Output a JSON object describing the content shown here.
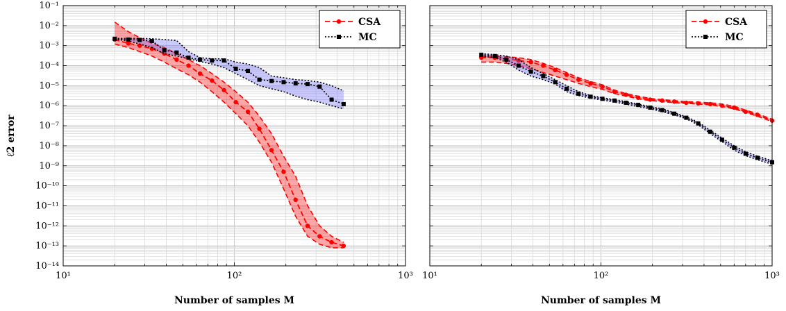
{
  "chart_data": [
    {
      "type": "line",
      "xscale": "log",
      "yscale": "log",
      "xlim": [
        10,
        1000
      ],
      "ylim": [
        1e-14,
        0.1
      ],
      "xlabel": "Number of samples M",
      "ylabel": "ℓ2 error",
      "grid": true,
      "legend_position": "top-right",
      "x_ticks": [
        {
          "value": 10,
          "label": "10¹"
        },
        {
          "value": 100,
          "label": "10²"
        },
        {
          "value": 1000,
          "label": "10³"
        }
      ],
      "y_ticks": [
        {
          "value": 0.1,
          "label": "10⁻¹"
        },
        {
          "value": 0.01,
          "label": "10⁻²"
        },
        {
          "value": 0.001,
          "label": "10⁻³"
        },
        {
          "value": 0.0001,
          "label": "10⁻⁴"
        },
        {
          "value": 1e-05,
          "label": "10⁻⁵"
        },
        {
          "value": 1e-06,
          "label": "10⁻⁶"
        },
        {
          "value": 1e-07,
          "label": "10⁻⁷"
        },
        {
          "value": 1e-08,
          "label": "10⁻⁸"
        },
        {
          "value": 1e-09,
          "label": "10⁻⁹"
        },
        {
          "value": 1e-10,
          "label": "10⁻¹⁰"
        },
        {
          "value": 1e-11,
          "label": "10⁻¹¹"
        },
        {
          "value": 1e-12,
          "label": "10⁻¹²"
        },
        {
          "value": 1e-13,
          "label": "10⁻¹³"
        },
        {
          "value": 1e-14,
          "label": "10⁻¹⁴"
        }
      ],
      "series": [
        {
          "name": "CSA",
          "color": "#ff0000",
          "line_style": "dashed",
          "marker": "circle",
          "x": [
            20,
            24,
            28,
            33,
            39,
            46,
            54,
            63,
            74,
            87,
            102,
            120,
            140,
            165,
            194,
            228,
            268,
            315,
            370,
            435
          ],
          "y": [
            0.002,
            0.0013,
            0.001,
            0.0007,
            0.0004,
            0.0002,
            0.0001,
            4e-05,
            1.8e-05,
            6e-06,
            1.5e-06,
            5e-07,
            7e-08,
            6e-09,
            5e-10,
            2e-11,
            1e-12,
            3e-13,
            1.5e-13,
            1e-13
          ],
          "y_upper": [
            0.015,
            0.005,
            0.0025,
            0.0013,
            0.0008,
            0.0004,
            0.0002,
            0.0001,
            4e-05,
            1.5e-05,
            5e-06,
            1.5e-06,
            3e-07,
            4e-08,
            3e-09,
            3e-10,
            1e-11,
            1e-12,
            3e-13,
            1.5e-13
          ],
          "y_lower": [
            0.0012,
            0.0008,
            0.0005,
            0.0003,
            0.00015,
            7e-05,
            3.5e-05,
            1.5e-05,
            5e-06,
            1.5e-06,
            4e-07,
            1e-07,
            1.5e-08,
            1.5e-09,
            7e-11,
            3e-12,
            3e-13,
            1.2e-13,
            8e-14,
            8e-14
          ]
        },
        {
          "name": "MC",
          "color": "#000000",
          "band_color": "#6666ff",
          "line_style": "dotted",
          "marker": "square",
          "x": [
            20,
            24,
            28,
            33,
            39,
            46,
            54,
            63,
            74,
            87,
            102,
            120,
            140,
            165,
            194,
            228,
            268,
            315,
            370,
            435
          ],
          "y": [
            0.0022,
            0.002,
            0.0019,
            0.0017,
            0.0006,
            0.00045,
            0.00025,
            0.0002,
            0.00018,
            0.00018,
            7e-05,
            5.5e-05,
            2e-05,
            1.7e-05,
            1.5e-05,
            1.3e-05,
            1.2e-05,
            9e-06,
            2e-06,
            1.2e-06
          ],
          "y_upper": [
            0.0023,
            0.0023,
            0.0023,
            0.0022,
            0.002,
            0.0018,
            0.0005,
            0.00025,
            0.00022,
            0.00022,
            0.00015,
            0.00012,
            8e-05,
            3e-05,
            2.5e-05,
            2e-05,
            1.8e-05,
            1.5e-05,
            1e-05,
            5.5e-06
          ],
          "y_lower": [
            0.0021,
            0.0017,
            0.0012,
            0.0008,
            0.0004,
            0.0003,
            0.00022,
            0.00016,
            0.00012,
            8e-05,
            4e-05,
            2e-05,
            1e-05,
            7e-06,
            5e-06,
            3e-06,
            2e-06,
            1.5e-06,
            1e-06,
            7e-07
          ]
        }
      ]
    },
    {
      "type": "line",
      "xscale": "log",
      "yscale": "log",
      "xlim": [
        10,
        1000
      ],
      "ylim": [
        1e-14,
        0.1
      ],
      "xlabel": "Number of samples M",
      "ylabel": "",
      "grid": true,
      "legend_position": "top-right",
      "x_ticks": [
        {
          "value": 10,
          "label": "10¹"
        },
        {
          "value": 100,
          "label": "10²"
        },
        {
          "value": 1000,
          "label": "10³"
        }
      ],
      "y_ticks": [],
      "series": [
        {
          "name": "CSA",
          "color": "#ff0000",
          "line_style": "dashed",
          "marker": "circle",
          "x": [
            20,
            24,
            28,
            33,
            39,
            46,
            54,
            63,
            74,
            87,
            102,
            120,
            140,
            165,
            194,
            228,
            268,
            315,
            370,
            435,
            510,
            600,
            700,
            820,
            1000
          ],
          "y": [
            0.00025,
            0.00025,
            0.00022,
            0.00018,
            0.00015,
            0.0001,
            6e-05,
            3.5e-05,
            2e-05,
            1.3e-05,
            9e-06,
            5e-06,
            3.5e-06,
            2.5e-06,
            2e-06,
            1.8e-06,
            1.6e-06,
            1.4e-06,
            1.3e-06,
            1.2e-06,
            1e-06,
            8e-07,
            5e-07,
            3.5e-07,
            1.8e-07
          ],
          "y_upper": [
            0.0003,
            0.0003,
            0.00028,
            0.00025,
            0.0002,
            0.00013,
            8e-05,
            4.5e-05,
            2.5e-05,
            1.6e-05,
            1.1e-05,
            6e-06,
            4e-06,
            3e-06,
            2.3e-06,
            2e-06,
            1.8e-06,
            1.6e-06,
            1.5e-06,
            1.4e-06,
            1.2e-06,
            9.5e-07,
            6e-07,
            4e-07,
            2.1e-07
          ],
          "y_lower": [
            0.00015,
            0.00015,
            0.00013,
            0.0001,
            7e-05,
            4.5e-05,
            3e-05,
            2e-05,
            1.3e-05,
            9e-06,
            6.5e-06,
            4e-06,
            3e-06,
            2.2e-06,
            1.8e-06,
            1.6e-06,
            1.4e-06,
            1.3e-06,
            1.2e-06,
            1.1e-06,
            9e-07,
            7e-07,
            4.5e-07,
            3e-07,
            1.6e-07
          ]
        },
        {
          "name": "MC",
          "color": "#000000",
          "band_color": "#6666ff",
          "line_style": "dotted",
          "marker": "square",
          "x": [
            20,
            24,
            28,
            33,
            39,
            46,
            54,
            63,
            74,
            87,
            102,
            120,
            140,
            165,
            194,
            228,
            268,
            315,
            370,
            435,
            510,
            600,
            700,
            820,
            1000
          ],
          "y": [
            0.00035,
            0.0003,
            0.0002,
            0.0001,
            5e-05,
            3e-05,
            1.5e-05,
            7e-06,
            4e-06,
            2.8e-06,
            2.2e-06,
            1.8e-06,
            1.4e-06,
            1.1e-06,
            8e-07,
            6e-07,
            4e-07,
            2.5e-07,
            1.3e-07,
            5e-08,
            2e-08,
            8e-09,
            4e-09,
            2.5e-09,
            1.5e-09
          ],
          "y_upper": [
            0.0004,
            0.00035,
            0.0003,
            0.0002,
            8e-05,
            4e-05,
            2e-05,
            1e-05,
            5e-06,
            3.2e-06,
            2.5e-06,
            2e-06,
            1.6e-06,
            1.2e-06,
            9e-07,
            7e-07,
            4.5e-07,
            2.8e-07,
            1.5e-07,
            6e-08,
            2.4e-08,
            1e-08,
            5e-09,
            3e-09,
            1.8e-09
          ],
          "y_lower": [
            0.0003,
            0.00025,
            0.00015,
            6e-05,
            3e-05,
            2e-05,
            1.2e-05,
            5e-06,
            3.2e-06,
            2.4e-06,
            1.9e-06,
            1.5e-06,
            1.2e-06,
            9e-07,
            7e-07,
            5e-07,
            3.5e-07,
            2.2e-07,
            1.1e-07,
            4e-08,
            1.6e-08,
            6e-09,
            3.2e-09,
            2e-09,
            1.2e-09
          ]
        }
      ]
    }
  ]
}
